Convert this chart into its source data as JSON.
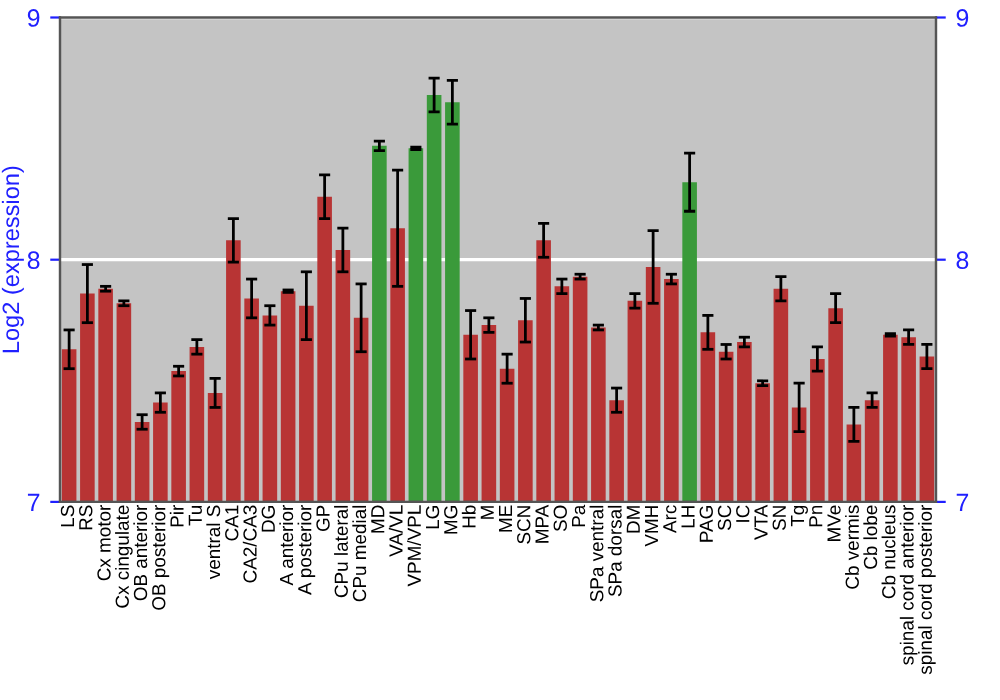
{
  "chart_data": {
    "type": "bar",
    "ylabel": "Log2 (expression)",
    "categories": [
      "LS",
      "RS",
      "Cx motor",
      "Cx cingulate",
      "OB anterior",
      "OB posterior",
      "Pir",
      "Tu",
      "ventral S",
      "CA1",
      "CA2/CA3",
      "DG",
      "A anterior",
      "A posterior",
      "GP",
      "CPu lateral",
      "CPu medial",
      "MD",
      "VA/VL",
      "VPM/VPL",
      "LG",
      "MG",
      "Hb",
      "M",
      "ME",
      "SCN",
      "MPA",
      "SO",
      "Pa",
      "SPa ventral",
      "SPa dorsal",
      "DM",
      "VMH",
      "Arc",
      "LH",
      "PAG",
      "SC",
      "IC",
      "VTA",
      "SN",
      "Tg",
      "Pn",
      "MVe",
      "Cb vermis",
      "Cb lobe",
      "Cb nucleus",
      "spinal cord anterior",
      "spinal cord posterior"
    ],
    "values": [
      7.63,
      7.86,
      7.88,
      7.82,
      7.33,
      7.41,
      7.54,
      7.64,
      7.45,
      8.08,
      7.84,
      7.77,
      7.87,
      7.81,
      8.26,
      8.04,
      7.76,
      8.47,
      8.13,
      8.46,
      8.68,
      8.65,
      7.69,
      7.73,
      7.55,
      7.75,
      8.08,
      7.89,
      7.93,
      7.72,
      7.42,
      7.83,
      7.97,
      7.92,
      8.32,
      7.7,
      7.62,
      7.66,
      7.49,
      7.88,
      7.39,
      7.59,
      7.8,
      7.32,
      7.42,
      7.69,
      7.68,
      7.6
    ],
    "errors": [
      0.08,
      0.12,
      0.01,
      0.01,
      0.03,
      0.04,
      0.02,
      0.03,
      0.06,
      0.09,
      0.08,
      0.04,
      0.005,
      0.14,
      0.09,
      0.09,
      0.14,
      0.02,
      0.24,
      0.005,
      0.07,
      0.09,
      0.1,
      0.03,
      0.06,
      0.09,
      0.07,
      0.03,
      0.01,
      0.01,
      0.05,
      0.03,
      0.15,
      0.02,
      0.12,
      0.07,
      0.03,
      0.02,
      0.01,
      0.05,
      0.1,
      0.05,
      0.06,
      0.07,
      0.03,
      0.005,
      0.03,
      0.05
    ],
    "colors": [
      "#b83434",
      "#b83434",
      "#b83434",
      "#b83434",
      "#b83434",
      "#b83434",
      "#b83434",
      "#b83434",
      "#b83434",
      "#b83434",
      "#b83434",
      "#b83434",
      "#b83434",
      "#b83434",
      "#b83434",
      "#b83434",
      "#b83434",
      "#3a9a3a",
      "#b83434",
      "#3a9a3a",
      "#3a9a3a",
      "#3a9a3a",
      "#b83434",
      "#b83434",
      "#b83434",
      "#b83434",
      "#b83434",
      "#b83434",
      "#b83434",
      "#b83434",
      "#b83434",
      "#b83434",
      "#b83434",
      "#b83434",
      "#3a9a3a",
      "#b83434",
      "#b83434",
      "#b83434",
      "#b83434",
      "#b83434",
      "#b83434",
      "#b83434",
      "#b83434",
      "#b83434",
      "#b83434",
      "#b83434",
      "#b83434",
      "#b83434"
    ],
    "ylim": [
      7,
      9
    ],
    "yticks": [
      7,
      8,
      9
    ],
    "y2lim": [
      7,
      9
    ],
    "y2ticks": [
      7,
      8,
      9
    ],
    "grid": "y"
  }
}
